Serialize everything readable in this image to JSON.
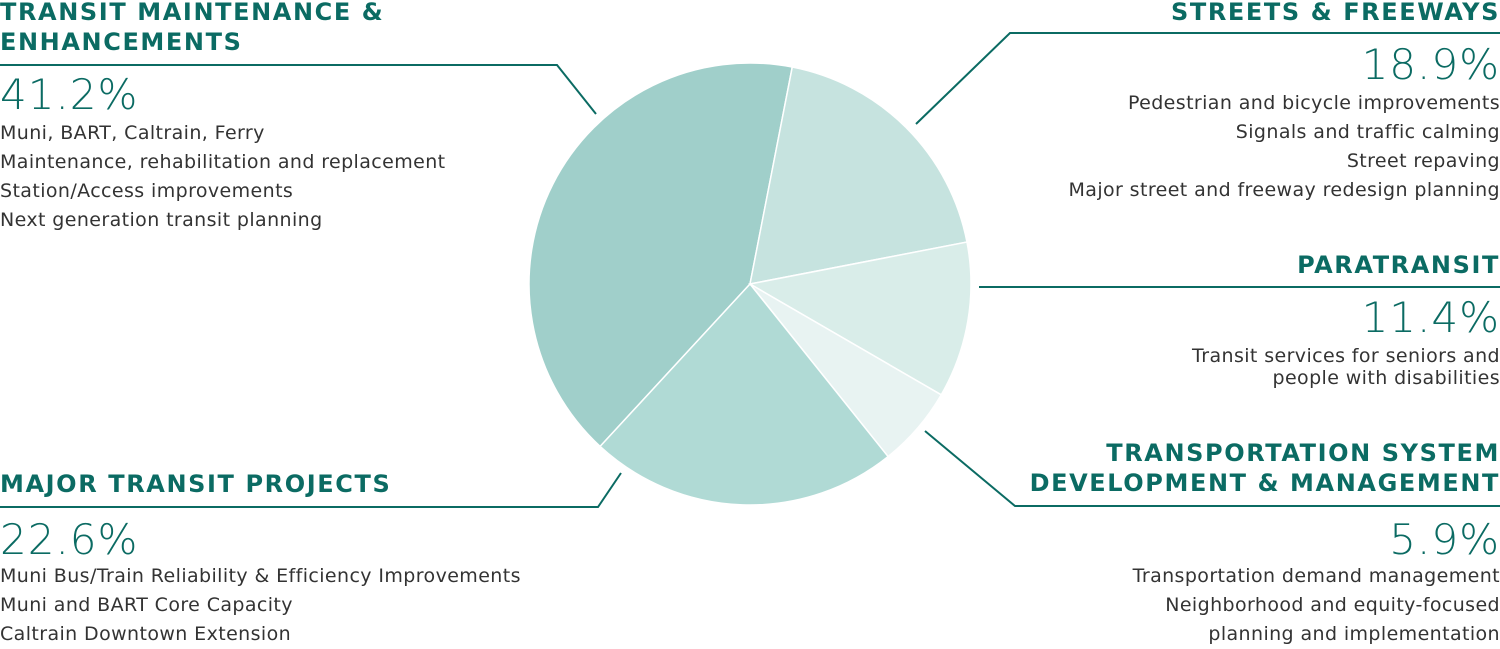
{
  "chart_data": {
    "type": "pie",
    "categories": [
      "TRANSIT MAINTENANCE & ENHANCEMENTS",
      "STREETS & FREEWAYS",
      "PARATRANSIT",
      "TRANSPORTATION SYSTEM DEVELOPMENT & MANAGEMENT",
      "MAJOR TRANSIT PROJECTS"
    ],
    "values": [
      41.2,
      18.9,
      11.4,
      5.9,
      22.6
    ],
    "value_labels": [
      "41.2%",
      "18.9%",
      "11.4%",
      "5.9%",
      "22.6%"
    ],
    "colors": [
      "#a0cfca",
      "#c6e3df",
      "#d9ede9",
      "#e8f3f2",
      "#b0dad5"
    ],
    "descriptions": [
      [
        "Muni, BART, Caltrain, Ferry",
        "Maintenance, rehabilitation and replacement",
        "Station/Access improvements",
        "Next generation transit planning"
      ],
      [
        "Pedestrian and bicycle improvements",
        "Signals and traffic calming",
        "Street repaving",
        "Major street and freeway redesign planning"
      ],
      [
        "Transit services for seniors and",
        "people with disabilities"
      ],
      [
        "Transportation demand management",
        "Neighborhood and equity-focused",
        "planning and implementation"
      ],
      [
        "Muni Bus/Train Reliability & Efficiency Improvements",
        "Muni and BART Core Capacity",
        "Caltrain Downtown Extension"
      ]
    ]
  }
}
